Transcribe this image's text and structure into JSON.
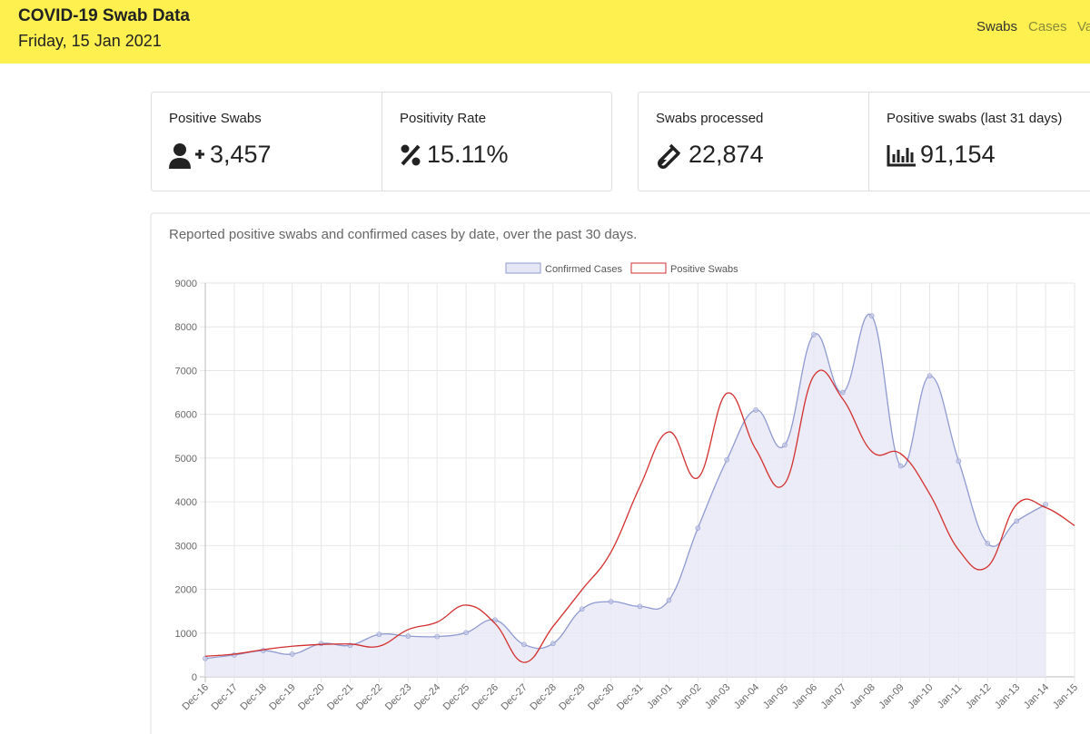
{
  "header": {
    "title": "COVID-19 Swab Data",
    "date": "Friday, 15 Jan 2021",
    "nav": [
      "Swabs",
      "Cases",
      "Va"
    ]
  },
  "stats": [
    {
      "label": "Positive Swabs",
      "value": "3,457"
    },
    {
      "label": "Positivity Rate",
      "value": "15.11%"
    },
    {
      "label": "Swabs processed",
      "value": "22,874"
    },
    {
      "label": "Positive swabs (last 31 days)",
      "value": "91,154"
    }
  ],
  "chart_data": {
    "type": "line",
    "title": "Reported positive swabs and confirmed cases by date, over the past 30 days.",
    "categories": [
      "Dec-16",
      "Dec-17",
      "Dec-18",
      "Dec-19",
      "Dec-20",
      "Dec-21",
      "Dec-22",
      "Dec-23",
      "Dec-24",
      "Dec-25",
      "Dec-26",
      "Dec-27",
      "Dec-28",
      "Dec-29",
      "Dec-30",
      "Dec-31",
      "Jan-01",
      "Jan-02",
      "Jan-03",
      "Jan-04",
      "Jan-05",
      "Jan-06",
      "Jan-07",
      "Jan-08",
      "Jan-09",
      "Jan-10",
      "Jan-11",
      "Jan-12",
      "Jan-13",
      "Jan-14",
      "Jan-15"
    ],
    "series": [
      {
        "name": "Confirmed Cases",
        "color": "#8f9ad0",
        "fill": "#e6e7f5",
        "values": [
          420,
          500,
          600,
          520,
          760,
          720,
          970,
          930,
          920,
          1010,
          1300,
          740,
          760,
          1550,
          1720,
          1610,
          1750,
          3400,
          4960,
          6100,
          5300,
          7820,
          6500,
          8250,
          4820,
          6880,
          4930,
          3050,
          3560,
          3940,
          null
        ]
      },
      {
        "name": "Positive Swabs",
        "color": "#d32f2f",
        "values": [
          470,
          520,
          620,
          700,
          740,
          750,
          700,
          1080,
          1250,
          1640,
          1220,
          330,
          1150,
          1990,
          2850,
          4350,
          5600,
          4550,
          6480,
          5200,
          4420,
          6880,
          6350,
          5150,
          5100,
          4180,
          2900,
          2520,
          3940,
          3870,
          3457
        ]
      }
    ],
    "ylim": [
      0,
      9000
    ],
    "yticks": [
      0,
      1000,
      2000,
      3000,
      4000,
      5000,
      6000,
      7000,
      8000,
      9000
    ],
    "grid": true,
    "legend": "top"
  }
}
